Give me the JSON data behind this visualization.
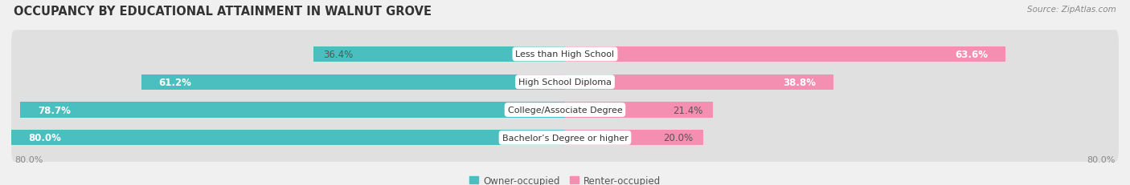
{
  "title": "OCCUPANCY BY EDUCATIONAL ATTAINMENT IN WALNUT GROVE",
  "source": "Source: ZipAtlas.com",
  "categories": [
    "Less than High School",
    "High School Diploma",
    "College/Associate Degree",
    "Bachelor’s Degree or higher"
  ],
  "owner_values": [
    36.4,
    61.2,
    78.7,
    80.0
  ],
  "renter_values": [
    63.6,
    38.8,
    21.4,
    20.0
  ],
  "owner_color": "#4BBFC0",
  "renter_color": "#F48FB1",
  "background_color": "#f0f0f0",
  "bar_background": "#e0e0e0",
  "axis_left_label": "80.0%",
  "axis_right_label": "80.0%",
  "title_fontsize": 10.5,
  "source_fontsize": 7.5,
  "label_fontsize": 8.5,
  "cat_fontsize": 8.0,
  "bar_height": 0.55
}
